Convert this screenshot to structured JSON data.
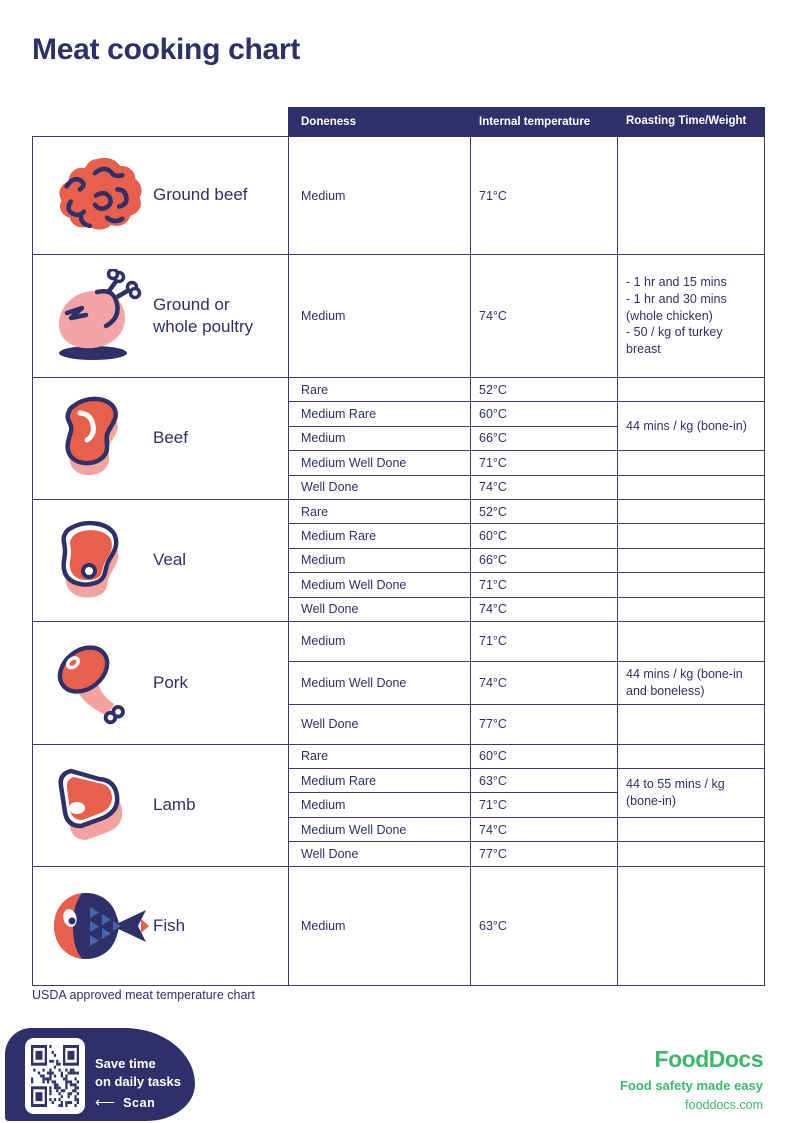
{
  "title": "Meat cooking chart",
  "header": {
    "doneness": "Doneness",
    "temperature": "Internal temperature",
    "roasting": "Roasting Time/Weight"
  },
  "sections": [
    {
      "name": "Ground beef",
      "icon": "ground-beef-icon",
      "rows": [
        {
          "doneness": "Medium",
          "temp": "71°C",
          "roast": ""
        }
      ]
    },
    {
      "name": "Ground or whole poultry",
      "icon": "poultry-icon",
      "rows": [
        {
          "doneness": "Medium",
          "temp": "74°C",
          "roast": "- 1 hr and 15 mins\n- 1 hr and 30 mins (whole chicken)\n- 50 / kg of turkey breast"
        }
      ]
    },
    {
      "name": "Beef",
      "icon": "beef-steak-icon",
      "rows": [
        {
          "doneness": "Rare",
          "temp": "52°C"
        },
        {
          "doneness": "Medium Rare",
          "temp": "60°C",
          "roast": "44 mins / kg (bone-in)"
        },
        {
          "doneness": "Medium",
          "temp": "66°C"
        },
        {
          "doneness": "Medium Well Done",
          "temp": "71°C"
        },
        {
          "doneness": "Well Done",
          "temp": "74°C"
        }
      ]
    },
    {
      "name": "Veal",
      "icon": "veal-steak-icon",
      "rows": [
        {
          "doneness": "Rare",
          "temp": "52°C"
        },
        {
          "doneness": "Medium Rare",
          "temp": "60°C"
        },
        {
          "doneness": "Medium",
          "temp": "66°C"
        },
        {
          "doneness": "Medium Well Done",
          "temp": "71°C"
        },
        {
          "doneness": "Well Done",
          "temp": "74°C"
        }
      ]
    },
    {
      "name": "Pork",
      "icon": "pork-leg-icon",
      "rows": [
        {
          "doneness": "Medium",
          "temp": "71°C"
        },
        {
          "doneness": "Medium Well Done",
          "temp": "74°C",
          "roast": "44 mins / kg (bone-in and boneless)"
        },
        {
          "doneness": "Well Done",
          "temp": "77°C"
        }
      ]
    },
    {
      "name": "Lamb",
      "icon": "lamb-chop-icon",
      "rows": [
        {
          "doneness": "Rare",
          "temp": "60°C"
        },
        {
          "doneness": "Medium Rare",
          "temp": "63°C",
          "roast": "44 to 55 mins / kg (bone-in)"
        },
        {
          "doneness": "Medium",
          "temp": "71°C"
        },
        {
          "doneness": "Medium Well Done",
          "temp": "74°C"
        },
        {
          "doneness": "Well Done",
          "temp": "77°C"
        }
      ]
    },
    {
      "name": "Fish",
      "icon": "fish-icon",
      "rows": [
        {
          "doneness": "Medium",
          "temp": "63°C",
          "roast": ""
        }
      ]
    }
  ],
  "footnote": "USDA approved meat temperature chart",
  "promo": {
    "message": "Save time\non daily tasks",
    "arrow": "⟵",
    "scan_label": "Scan"
  },
  "brand": {
    "logo_text": "FoodDocs",
    "tagline": "Food safety made easy",
    "website": "fooddocs.com"
  },
  "colors": {
    "navy": "#2E3169",
    "coral": "#E8604C",
    "pink": "#F2A39D",
    "green": "#3CB96B"
  }
}
